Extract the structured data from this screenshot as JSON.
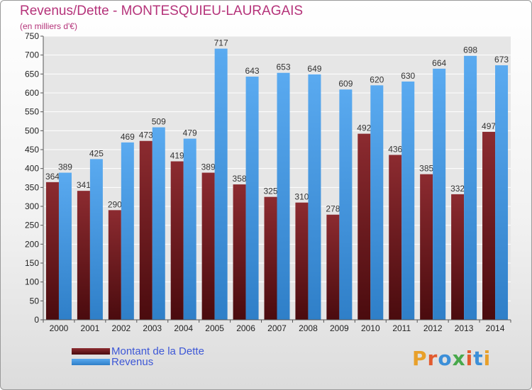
{
  "header": {
    "title": "Revenus/Dette - MONTESQUIEU-LAURAGAIS",
    "subtitle": "(en milliers d'€)"
  },
  "colors": {
    "dette": "#7a1f24",
    "revenus": "#4a9be3",
    "title": "#b5337a",
    "legend_text": "#3d57d6"
  },
  "chart_data": {
    "type": "bar",
    "categories": [
      "2000",
      "2001",
      "2002",
      "2003",
      "2004",
      "2005",
      "2006",
      "2007",
      "2008",
      "2009",
      "2010",
      "2011",
      "2012",
      "2013",
      "2014"
    ],
    "series": [
      {
        "name": "Montant de la Dette",
        "values": [
          364,
          341,
          290,
          473,
          419,
          389,
          358,
          325,
          310,
          278,
          492,
          436,
          385,
          332,
          497
        ]
      },
      {
        "name": "Revenus",
        "values": [
          389,
          425,
          469,
          509,
          479,
          717,
          643,
          653,
          649,
          609,
          620,
          630,
          664,
          698,
          673
        ]
      }
    ],
    "ylim": [
      0,
      750
    ],
    "yticks": [
      0,
      50,
      100,
      150,
      200,
      250,
      300,
      350,
      400,
      450,
      500,
      550,
      600,
      650,
      700,
      750
    ],
    "grid": true,
    "legend": "bottom-left",
    "title": "Revenus/Dette - MONTESQUIEU-LAURAGAIS",
    "xlabel": "",
    "ylabel": "(en milliers d'€)"
  },
  "logo": {
    "text": "Proxiti"
  }
}
